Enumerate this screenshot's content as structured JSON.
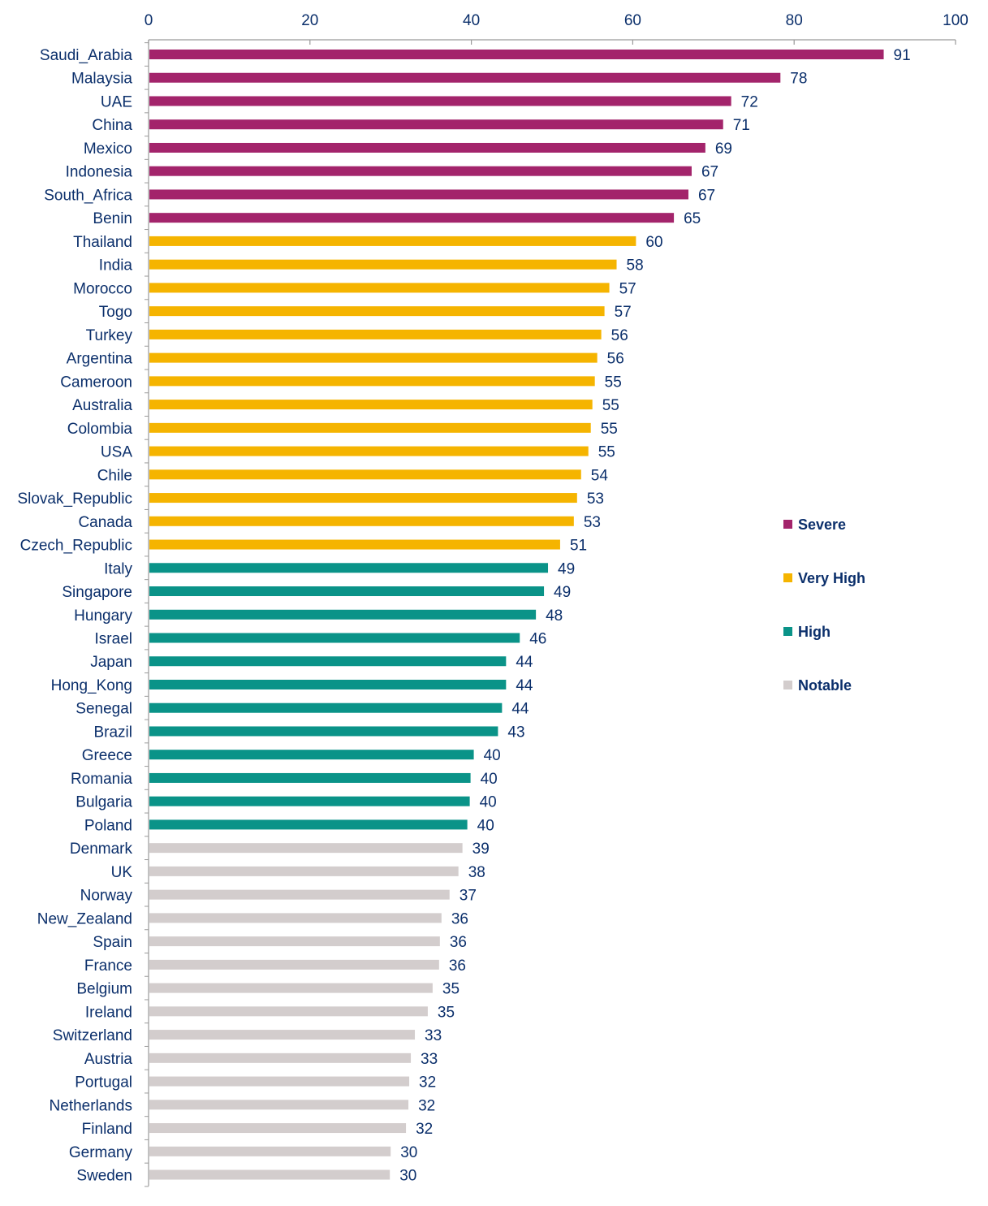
{
  "chart_data": {
    "type": "bar",
    "orientation": "horizontal",
    "xlim": [
      0,
      100
    ],
    "x_ticks": [
      0,
      20,
      40,
      60,
      80,
      100
    ],
    "axis_position": "top",
    "grid": false,
    "legend_position": "right",
    "categories": [
      "Saudi_Arabia",
      "Malaysia",
      "UAE",
      "China",
      "Mexico",
      "Indonesia",
      "South_Africa",
      "Benin",
      "Thailand",
      "India",
      "Morocco",
      "Togo",
      "Turkey",
      "Argentina",
      "Cameroon",
      "Australia",
      "Colombia",
      "USA",
      "Chile",
      "Slovak_Republic",
      "Canada",
      "Czech_Republic",
      "Italy",
      "Singapore",
      "Hungary",
      "Israel",
      "Japan",
      "Hong_Kong",
      "Senegal",
      "Brazil",
      "Greece",
      "Romania",
      "Bulgaria",
      "Poland",
      "Denmark",
      "UK",
      "Norway",
      "New_Zealand",
      "Spain",
      "France",
      "Belgium",
      "Ireland",
      "Switzerland",
      "Austria",
      "Portugal",
      "Netherlands",
      "Finland",
      "Germany",
      "Sweden"
    ],
    "values": [
      91,
      78,
      72,
      71,
      69,
      67,
      67,
      65,
      60,
      58,
      57,
      57,
      56,
      56,
      55,
      55,
      55,
      55,
      54,
      53,
      53,
      51,
      49,
      49,
      48,
      46,
      44,
      44,
      44,
      43,
      40,
      40,
      40,
      40,
      39,
      38,
      37,
      36,
      36,
      36,
      35,
      35,
      33,
      33,
      32,
      32,
      32,
      30,
      30
    ],
    "bar_values": [
      91.1,
      78.3,
      72.2,
      71.2,
      69.0,
      67.3,
      66.9,
      65.1,
      60.4,
      58.0,
      57.1,
      56.5,
      56.1,
      55.6,
      55.3,
      55.0,
      54.8,
      54.5,
      53.6,
      53.1,
      52.7,
      51.0,
      49.5,
      49.0,
      48.0,
      46.0,
      44.3,
      44.3,
      43.8,
      43.3,
      40.3,
      39.9,
      39.8,
      39.5,
      38.9,
      38.4,
      37.3,
      36.3,
      36.1,
      36.0,
      35.2,
      34.6,
      33.0,
      32.5,
      32.3,
      32.2,
      31.9,
      30.0,
      29.9
    ],
    "groups": [
      "Severe",
      "Severe",
      "Severe",
      "Severe",
      "Severe",
      "Severe",
      "Severe",
      "Severe",
      "Very High",
      "Very High",
      "Very High",
      "Very High",
      "Very High",
      "Very High",
      "Very High",
      "Very High",
      "Very High",
      "Very High",
      "Very High",
      "Very High",
      "Very High",
      "Very High",
      "High",
      "High",
      "High",
      "High",
      "High",
      "High",
      "High",
      "High",
      "High",
      "High",
      "High",
      "High",
      "Notable",
      "Notable",
      "Notable",
      "Notable",
      "Notable",
      "Notable",
      "Notable",
      "Notable",
      "Notable",
      "Notable",
      "Notable",
      "Notable",
      "Notable",
      "Notable",
      "Notable"
    ],
    "legend": [
      {
        "name": "Severe",
        "color": "#a3246b"
      },
      {
        "name": "Very High",
        "color": "#f5b400"
      },
      {
        "name": "High",
        "color": "#0a9388"
      },
      {
        "name": "Notable",
        "color": "#d3cdcd"
      }
    ],
    "legend_text_color": "#0b2f6b",
    "axis_color": "#9a9a9a",
    "label_color": "#0b2f6b"
  }
}
